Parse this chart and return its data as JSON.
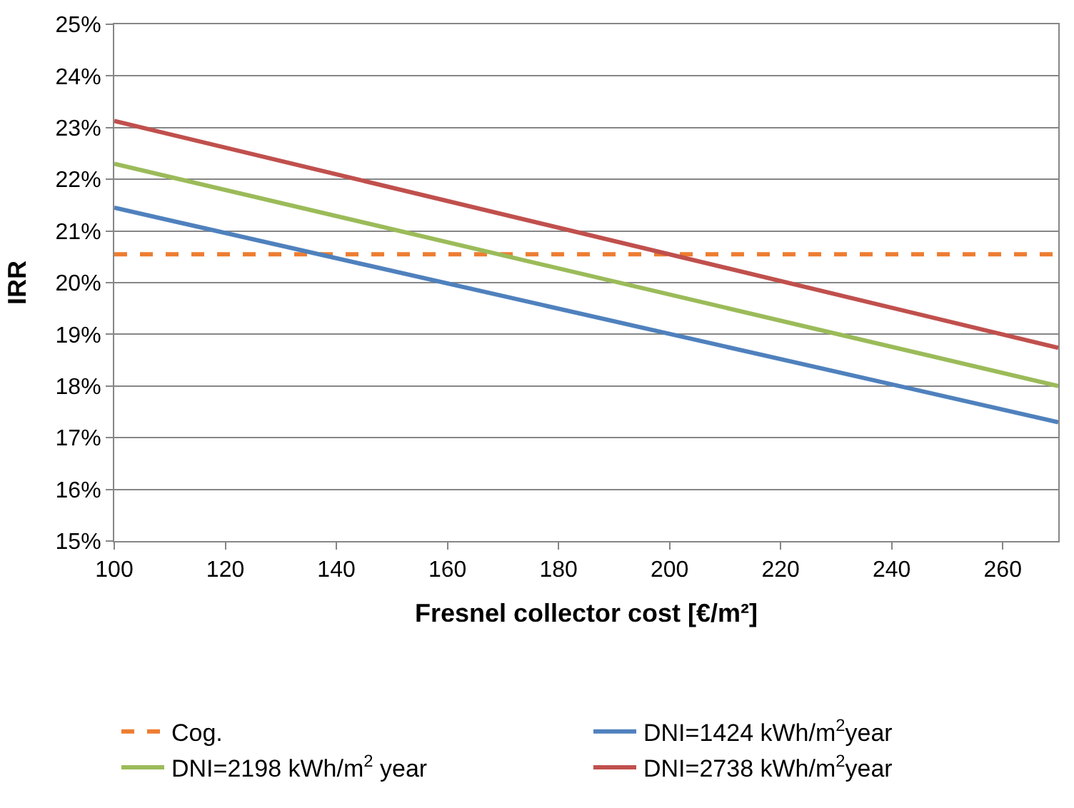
{
  "chart_data": {
    "type": "line",
    "xlabel": "Fresnel collector cost [€/m²]",
    "ylabel": "IRR",
    "x": [
      100,
      270
    ],
    "series": [
      {
        "name": "Cog.",
        "color": "#ed7d31",
        "values": [
          20.55,
          20.55
        ],
        "line_style": "dashed"
      },
      {
        "name": "DNI=1424 kWh/m$^{2}$year",
        "color": "#4f81bd",
        "values": [
          21.45,
          17.3
        ]
      },
      {
        "name": "DNI=2198 kWh/m$^{2}$ year",
        "color": "#9bbb59",
        "values": [
          22.3,
          18.0
        ]
      },
      {
        "name": "DNI=2738 kWh/m$^{2}$year",
        "color": "#c0504d",
        "values": [
          23.13,
          18.74
        ]
      }
    ],
    "xlim": [
      100,
      270
    ],
    "xticks": [
      100,
      120,
      140,
      160,
      180,
      200,
      220,
      240,
      260
    ],
    "ylim": [
      15,
      25
    ],
    "yticks": [
      {
        "value": 15,
        "label": "15%"
      },
      {
        "value": 16,
        "label": "16%"
      },
      {
        "value": 17,
        "label": "17%"
      },
      {
        "value": 18,
        "label": "18%"
      },
      {
        "value": 19,
        "label": "19%"
      },
      {
        "value": 20,
        "label": "20%"
      },
      {
        "value": 21,
        "label": "21%"
      },
      {
        "value": 22,
        "label": "22%"
      },
      {
        "value": 23,
        "label": "23%"
      },
      {
        "value": 24,
        "label": "24%"
      },
      {
        "value": 25,
        "label": "25%"
      }
    ],
    "grid": "y",
    "legend": "bottom",
    "marker": "none"
  }
}
